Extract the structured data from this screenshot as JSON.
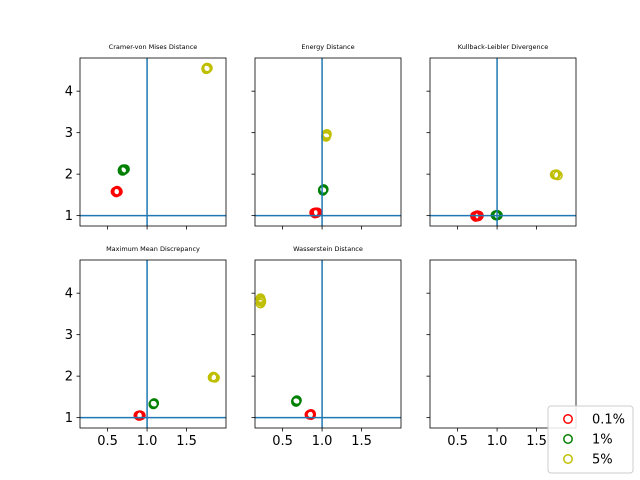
{
  "chart_data": {
    "type": "scatter",
    "xlim": [
      0.15,
      2.0
    ],
    "ylim": [
      0.75,
      4.8
    ],
    "xticks": [
      0.5,
      1.0,
      1.5
    ],
    "xtick_labels": [
      "0.5",
      "1.0",
      "1.5"
    ],
    "yticks": [
      1,
      2,
      3,
      4
    ],
    "ytick_labels": [
      "1",
      "2",
      "3",
      "4"
    ],
    "reference_lines": {
      "x": 1.0,
      "y": 1.0,
      "color": "#1f77b4"
    },
    "grid": false,
    "legend": {
      "placement": "bottom-right",
      "entries": [
        {
          "label": "0.1%",
          "color": "#ff0000"
        },
        {
          "label": "1%",
          "color": "#008000"
        },
        {
          "label": "5%",
          "color": "#bfbf00"
        }
      ]
    },
    "panels": [
      {
        "title": "Cramer-von Mises Distance",
        "show_xticklabels": false,
        "show_yticklabels": true,
        "series": [
          {
            "name": "0.1%",
            "color": "#ff0000",
            "points": [
              [
                0.61,
                1.57
              ],
              [
                0.62,
                1.59
              ],
              [
                0.6,
                1.58
              ],
              [
                0.61,
                1.56
              ],
              [
                0.63,
                1.58
              ],
              [
                0.62,
                1.6
              ]
            ]
          },
          {
            "name": "1%",
            "color": "#008000",
            "points": [
              [
                0.69,
                2.1
              ],
              [
                0.7,
                2.12
              ],
              [
                0.71,
                2.11
              ],
              [
                0.7,
                2.09
              ],
              [
                0.72,
                2.12
              ],
              [
                0.69,
                2.08
              ]
            ]
          },
          {
            "name": "5%",
            "color": "#bfbf00",
            "points": [
              [
                1.75,
                4.55
              ],
              [
                1.76,
                4.57
              ],
              [
                1.77,
                4.56
              ],
              [
                1.75,
                4.53
              ],
              [
                1.76,
                4.54
              ]
            ]
          }
        ]
      },
      {
        "title": "Energy Distance",
        "show_xticklabels": false,
        "show_yticklabels": false,
        "series": [
          {
            "name": "0.1%",
            "color": "#ff0000",
            "points": [
              [
                0.9,
                1.07
              ],
              [
                0.92,
                1.08
              ],
              [
                0.93,
                1.06
              ],
              [
                0.91,
                1.05
              ],
              [
                0.94,
                1.08
              ]
            ]
          },
          {
            "name": "1%",
            "color": "#008000",
            "points": [
              [
                1.01,
                1.62
              ],
              [
                1.02,
                1.64
              ],
              [
                1.01,
                1.6
              ],
              [
                1.02,
                1.63
              ]
            ]
          },
          {
            "name": "5%",
            "color": "#bfbf00",
            "points": [
              [
                1.05,
                2.92
              ],
              [
                1.06,
                2.97
              ],
              [
                1.05,
                2.9
              ],
              [
                1.06,
                2.95
              ]
            ]
          }
        ]
      },
      {
        "title": "Kullback-Leibler Divergence",
        "show_xticklabels": false,
        "show_yticklabels": false,
        "series": [
          {
            "name": "0.1%",
            "color": "#ff0000",
            "points": [
              [
                0.72,
                0.99
              ],
              [
                0.74,
                1.0
              ],
              [
                0.76,
                0.98
              ],
              [
                0.73,
                0.97
              ],
              [
                0.77,
                1.0
              ],
              [
                0.75,
                1.01
              ]
            ]
          },
          {
            "name": "1%",
            "color": "#008000",
            "points": [
              [
                0.98,
                1.01
              ],
              [
                1.0,
                1.02
              ],
              [
                0.99,
                1.0
              ],
              [
                1.01,
                1.01
              ]
            ]
          },
          {
            "name": "5%",
            "color": "#bfbf00",
            "points": [
              [
                1.73,
                1.99
              ],
              [
                1.75,
                2.0
              ],
              [
                1.77,
                1.97
              ],
              [
                1.74,
                1.98
              ]
            ]
          }
        ]
      },
      {
        "title": "Maximum Mean Discrepancy",
        "show_xticklabels": true,
        "show_yticklabels": true,
        "series": [
          {
            "name": "0.1%",
            "color": "#ff0000",
            "points": [
              [
                0.89,
                1.05
              ],
              [
                0.91,
                1.06
              ],
              [
                0.9,
                1.04
              ],
              [
                0.92,
                1.05
              ]
            ]
          },
          {
            "name": "1%",
            "color": "#008000",
            "points": [
              [
                1.08,
                1.33
              ],
              [
                1.09,
                1.35
              ],
              [
                1.08,
                1.32
              ]
            ]
          },
          {
            "name": "5%",
            "color": "#bfbf00",
            "points": [
              [
                1.83,
                1.97
              ],
              [
                1.85,
                1.98
              ],
              [
                1.86,
                1.96
              ],
              [
                1.84,
                1.99
              ]
            ]
          }
        ]
      },
      {
        "title": "Wasserstein Distance",
        "show_xticklabels": true,
        "show_yticklabels": false,
        "series": [
          {
            "name": "0.1%",
            "color": "#ff0000",
            "points": [
              [
                0.85,
                1.08
              ],
              [
                0.86,
                1.09
              ],
              [
                0.84,
                1.07
              ],
              [
                0.86,
                1.06
              ]
            ]
          },
          {
            "name": "1%",
            "color": "#008000",
            "points": [
              [
                0.67,
                1.4
              ],
              [
                0.68,
                1.42
              ],
              [
                0.67,
                1.38
              ],
              [
                0.68,
                1.41
              ]
            ]
          },
          {
            "name": "5%",
            "color": "#bfbf00",
            "points": [
              [
                0.22,
                3.75
              ],
              [
                0.23,
                3.82
              ],
              [
                0.22,
                3.88
              ],
              [
                0.23,
                3.79
              ],
              [
                0.22,
                3.85
              ]
            ]
          }
        ]
      },
      {
        "title": "",
        "show_xticklabels": true,
        "show_yticklabels": false,
        "series": []
      }
    ]
  }
}
